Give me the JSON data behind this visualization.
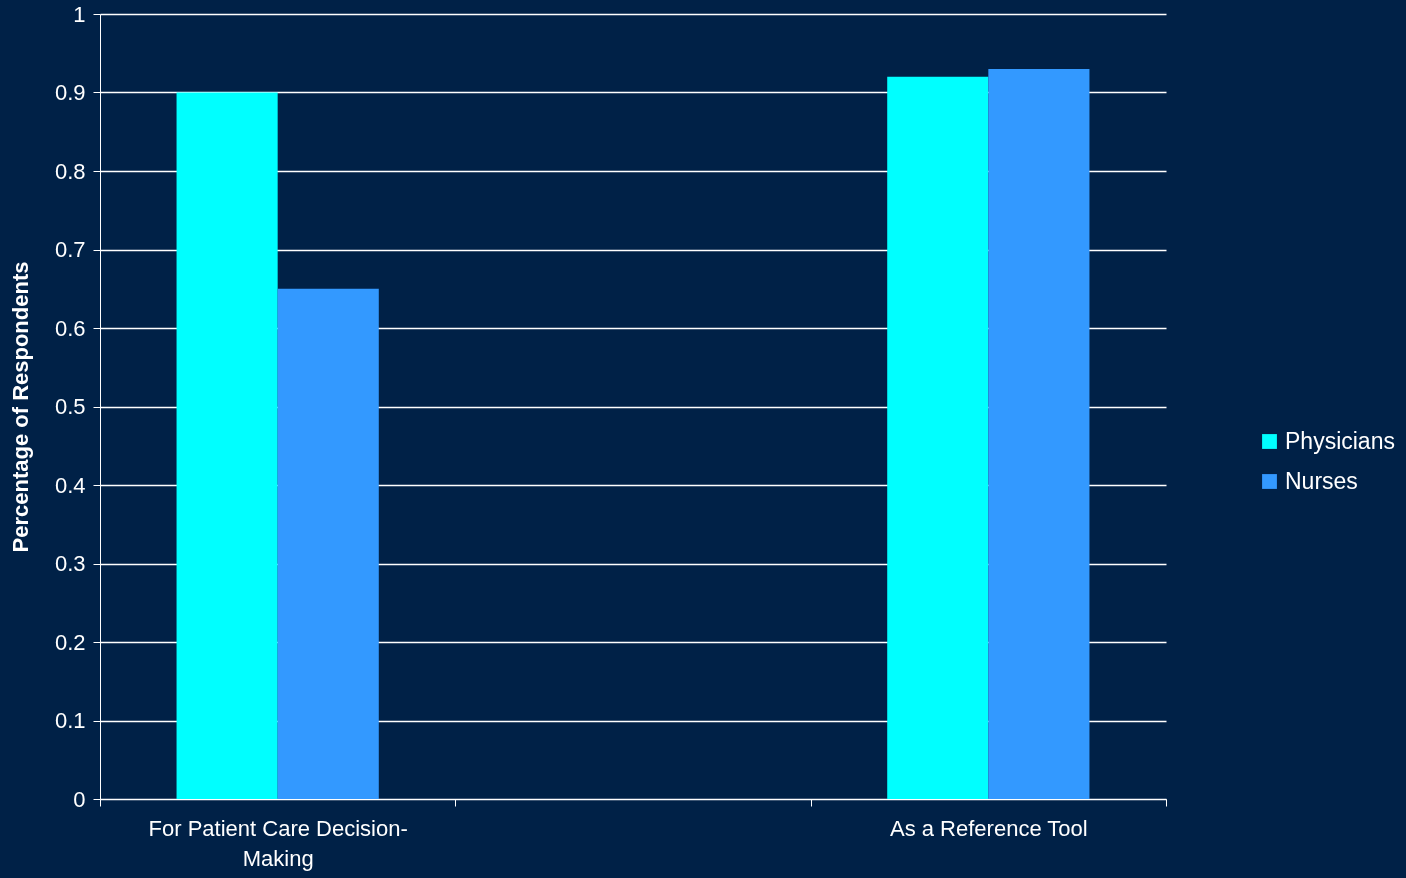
{
  "chart_data": {
    "type": "bar",
    "ylabel": "Percentage of Respondents",
    "categories": [
      "For Patient Care Decision-Making",
      null,
      "As a Reference Tool"
    ],
    "series": [
      {
        "name": "Physicians",
        "color": "#00ffff",
        "values": [
          0.9,
          null,
          0.92
        ]
      },
      {
        "name": "Nurses",
        "color": "#3399ff",
        "values": [
          0.65,
          null,
          0.93
        ]
      }
    ],
    "ylim": [
      0,
      1
    ],
    "yticks": [
      0,
      0.1,
      0.2,
      0.3,
      0.4,
      0.5,
      0.6,
      0.7,
      0.8,
      0.9,
      1
    ],
    "grid": "y",
    "legend": "right"
  }
}
